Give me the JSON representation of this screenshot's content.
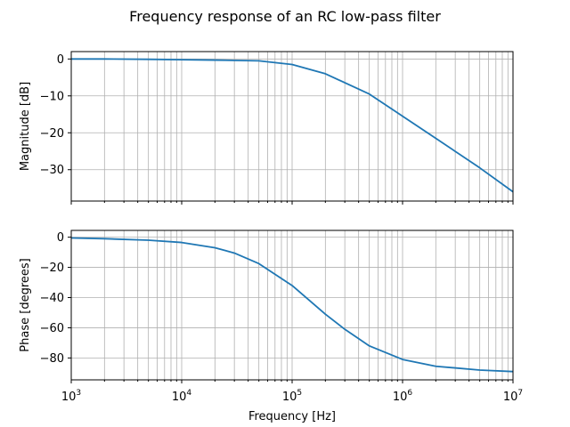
{
  "chart_data": {
    "type": "line",
    "title": "Frequency response of an RC low-pass filter",
    "xlabel": "Frequency [Hz]",
    "xscale": "log",
    "xlim": [
      1000,
      10000000
    ],
    "grid": "both",
    "line_color": "#1f77b4",
    "subplots": [
      {
        "ylabel": "Magnitude [dB]",
        "ylim": [
          -38.5,
          2
        ],
        "yticks": [
          0,
          -10,
          -20,
          -30
        ],
        "x": [
          1000,
          2000,
          5000,
          10000,
          20000,
          50000,
          100000,
          200000,
          500000,
          1000000,
          2000000,
          5000000,
          10000000
        ],
        "values": [
          0,
          0,
          -0.1,
          -0.2,
          -0.3,
          -0.5,
          -1.5,
          -4,
          -9.5,
          -15.5,
          -21.5,
          -29.5,
          -36
        ]
      },
      {
        "ylabel": "Phase [degrees]",
        "ylim": [
          -94.5,
          4.5
        ],
        "yticks": [
          0,
          -20,
          -40,
          -60,
          -80
        ],
        "x": [
          1000,
          2000,
          5000,
          10000,
          20000,
          30000,
          50000,
          100000,
          200000,
          300000,
          500000,
          1000000,
          2000000,
          5000000,
          10000000
        ],
        "values": [
          -0.5,
          -1,
          -2,
          -3.5,
          -7,
          -10.5,
          -17.5,
          -32,
          -51,
          -61,
          -72,
          -81,
          -85.5,
          -88,
          -89
        ]
      }
    ],
    "xticks": [
      {
        "base": "10",
        "exp": "3"
      },
      {
        "base": "10",
        "exp": "4"
      },
      {
        "base": "10",
        "exp": "5"
      },
      {
        "base": "10",
        "exp": "6"
      },
      {
        "base": "10",
        "exp": "7"
      }
    ]
  }
}
